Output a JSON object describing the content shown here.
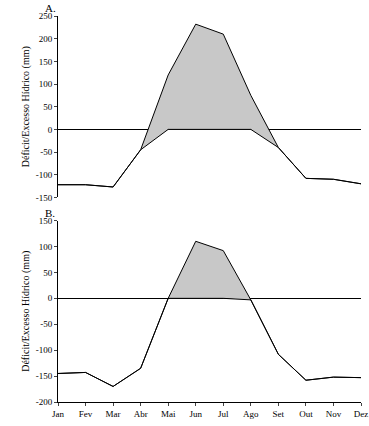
{
  "chart_data": [
    {
      "type": "area",
      "title": "A.",
      "y_label": "Déficit/Excesso Hídrico (mm)",
      "categories": [
        "Jan",
        "Fev",
        "Mar",
        "Abr",
        "Mai",
        "Jun",
        "Jul",
        "Ago",
        "Set",
        "Out",
        "Nov",
        "Dez"
      ],
      "series": [
        {
          "color": "#000000",
          "values": [
            -122,
            -122,
            -127,
            -45,
            0,
            0,
            0,
            0,
            -40,
            -108,
            -110,
            -120
          ]
        },
        {
          "color": "#000000",
          "values": [
            -122,
            -122,
            -127,
            -45,
            120,
            232,
            210,
            75,
            -40,
            -108,
            -110,
            -120
          ]
        }
      ],
      "color": "#c8c8c8",
      "ylim": [
        -150,
        250
      ],
      "yticks": [
        -150,
        -100,
        -50,
        0,
        50,
        100,
        150,
        200,
        250
      ],
      "grid": false,
      "tick_labels": "y"
    },
    {
      "type": "area",
      "title": "B.",
      "y_label": "Déficit/Excesso Hídrico (mm)",
      "categories": [
        "Jan",
        "Fev",
        "Mar",
        "Abr",
        "Mai",
        "Jun",
        "Jul",
        "Ago",
        "Set",
        "Out",
        "Nov",
        "Dez"
      ],
      "series": [
        {
          "color": "#000000",
          "values": [
            -145,
            -143,
            -170,
            -135,
            0,
            0,
            0,
            -3,
            -108,
            -158,
            -152,
            -153
          ]
        },
        {
          "color": "#000000",
          "values": [
            -145,
            -143,
            -170,
            -135,
            0,
            110,
            92,
            -3,
            -108,
            -158,
            -152,
            -153
          ]
        }
      ],
      "color": "#c8c8c8",
      "ylim": [
        -200,
        150
      ],
      "yticks": [
        -200,
        -150,
        -100,
        -50,
        0,
        50,
        100,
        150
      ],
      "grid": false
    }
  ]
}
